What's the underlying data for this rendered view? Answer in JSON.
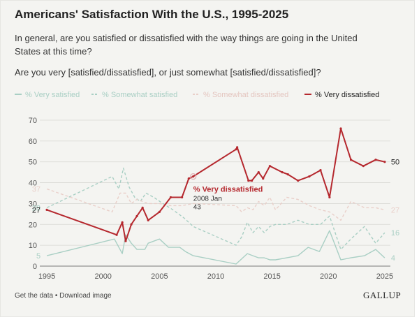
{
  "header": {
    "title": "Americans' Satisfaction With the U.S., 1995-2025",
    "question_line1": "In general, are you satisfied or dissatisfied with the way things are going in the United States at this time?",
    "question_line2": "Are you very [satisfied/dissatisfied], or just somewhat [satisfied/dissatisfied]?"
  },
  "footer": {
    "get_data": "Get the data",
    "separator": " • ",
    "download": "Download image",
    "logo": "GALLUP"
  },
  "chart_data": {
    "type": "line",
    "xlim": [
      1994.5,
      2025.5
    ],
    "ylim": [
      0,
      70
    ],
    "x_ticks": [
      "1995",
      "2000",
      "2005",
      "2010",
      "2015",
      "2020",
      "2025"
    ],
    "y_ticks": [
      "0",
      "10",
      "20",
      "30",
      "40",
      "50",
      "60",
      "70"
    ],
    "grid": true,
    "legend_position": "top",
    "highlighted_series": "% Very dissatisfied",
    "annotation": {
      "label": "% Very dissatisfied",
      "date": "2008 Jan",
      "value": "43",
      "x": 2008.0,
      "y": 43
    },
    "series": [
      {
        "name": "% Very satisfied",
        "color": "#a9cfc4",
        "dash": "solid",
        "faded": true,
        "start_label": "5",
        "end_label": "4",
        "points": [
          [
            1995,
            5
          ],
          [
            2001,
            13
          ],
          [
            2001.7,
            6
          ],
          [
            2002,
            15
          ],
          [
            2002.5,
            11
          ],
          [
            2003,
            8
          ],
          [
            2003.7,
            8
          ],
          [
            2004,
            11
          ],
          [
            2005,
            13
          ],
          [
            2005.8,
            9
          ],
          [
            2006.8,
            9
          ],
          [
            2007.3,
            7
          ],
          [
            2008,
            5
          ],
          [
            2011.8,
            1
          ],
          [
            2012.8,
            6
          ],
          [
            2013.3,
            5
          ],
          [
            2013.8,
            4
          ],
          [
            2014.3,
            4
          ],
          [
            2014.8,
            3
          ],
          [
            2015.3,
            3
          ],
          [
            2016.3,
            4
          ],
          [
            2017.3,
            5
          ],
          [
            2018.2,
            9
          ],
          [
            2019.2,
            7
          ],
          [
            2020.1,
            17
          ],
          [
            2021.1,
            3
          ],
          [
            2022,
            4
          ],
          [
            2023.2,
            5
          ],
          [
            2024.2,
            8
          ],
          [
            2025,
            4
          ]
        ]
      },
      {
        "name": "% Somewhat satisfied",
        "color": "#a9cfc4",
        "dash": "dashed",
        "faded": true,
        "start_label": "28",
        "end_label": "16",
        "points": [
          [
            1995,
            28
          ],
          [
            2000.8,
            43
          ],
          [
            2001.4,
            37
          ],
          [
            2001.8,
            47
          ],
          [
            2002.3,
            38
          ],
          [
            2002.8,
            33
          ],
          [
            2003.3,
            31
          ],
          [
            2003.8,
            35
          ],
          [
            2004.5,
            33
          ],
          [
            2005.3,
            30
          ],
          [
            2006.2,
            27
          ],
          [
            2007.2,
            23
          ],
          [
            2008,
            19
          ],
          [
            2011.8,
            10
          ],
          [
            2012.3,
            14
          ],
          [
            2012.8,
            21
          ],
          [
            2013.3,
            16
          ],
          [
            2013.8,
            19
          ],
          [
            2014.3,
            16
          ],
          [
            2014.8,
            19
          ],
          [
            2015.3,
            20
          ],
          [
            2016.3,
            20
          ],
          [
            2017.3,
            22
          ],
          [
            2018.3,
            20
          ],
          [
            2019.3,
            20
          ],
          [
            2020.1,
            24
          ],
          [
            2021.1,
            8
          ],
          [
            2022,
            13
          ],
          [
            2023.2,
            19
          ],
          [
            2024.2,
            11
          ],
          [
            2025,
            16
          ]
        ]
      },
      {
        "name": "% Somewhat dissatisfied",
        "color": "#e9cfc9",
        "dash": "dashed",
        "faded": true,
        "start_label": "37",
        "end_label": "27",
        "points": [
          [
            1995,
            37
          ],
          [
            2000.8,
            26
          ],
          [
            2001.5,
            35
          ],
          [
            2002,
            35
          ],
          [
            2002.5,
            30
          ],
          [
            2003,
            32
          ],
          [
            2003.5,
            31
          ],
          [
            2004,
            30
          ],
          [
            2005,
            30
          ],
          [
            2006,
            29
          ],
          [
            2007,
            29
          ],
          [
            2008,
            30
          ],
          [
            2011.8,
            29
          ],
          [
            2012.3,
            26
          ],
          [
            2012.8,
            28
          ],
          [
            2013.3,
            27
          ],
          [
            2013.8,
            31
          ],
          [
            2014.3,
            29
          ],
          [
            2014.8,
            33
          ],
          [
            2015.3,
            27
          ],
          [
            2016.3,
            33
          ],
          [
            2017.3,
            32
          ],
          [
            2018.3,
            29
          ],
          [
            2019.3,
            27
          ],
          [
            2020.1,
            26
          ],
          [
            2021.1,
            22
          ],
          [
            2022,
            31
          ],
          [
            2023.2,
            28
          ],
          [
            2024.2,
            28
          ],
          [
            2025,
            27
          ]
        ]
      },
      {
        "name": "% Very dissatisfied",
        "color": "#b5282e",
        "dash": "solid",
        "faded": false,
        "start_label": "27",
        "end_label": "50",
        "points": [
          [
            1995,
            27
          ],
          [
            2001.2,
            15
          ],
          [
            2001.7,
            21
          ],
          [
            2002,
            12
          ],
          [
            2002.5,
            20
          ],
          [
            2003,
            24
          ],
          [
            2003.5,
            28
          ],
          [
            2004,
            22
          ],
          [
            2005,
            26
          ],
          [
            2006,
            33
          ],
          [
            2007,
            33
          ],
          [
            2007.6,
            42
          ],
          [
            2008,
            43
          ],
          [
            2011.8,
            56
          ],
          [
            2011.9,
            57
          ],
          [
            2012.9,
            41
          ],
          [
            2013.2,
            41
          ],
          [
            2013.8,
            45
          ],
          [
            2014.2,
            42
          ],
          [
            2014.8,
            48
          ],
          [
            2015.9,
            45
          ],
          [
            2016.4,
            44
          ],
          [
            2017.3,
            41
          ],
          [
            2018.3,
            43
          ],
          [
            2019.3,
            46
          ],
          [
            2020.1,
            33
          ],
          [
            2021.1,
            66
          ],
          [
            2022,
            51
          ],
          [
            2023.1,
            48
          ],
          [
            2024.2,
            51
          ],
          [
            2025,
            50
          ]
        ]
      }
    ]
  }
}
